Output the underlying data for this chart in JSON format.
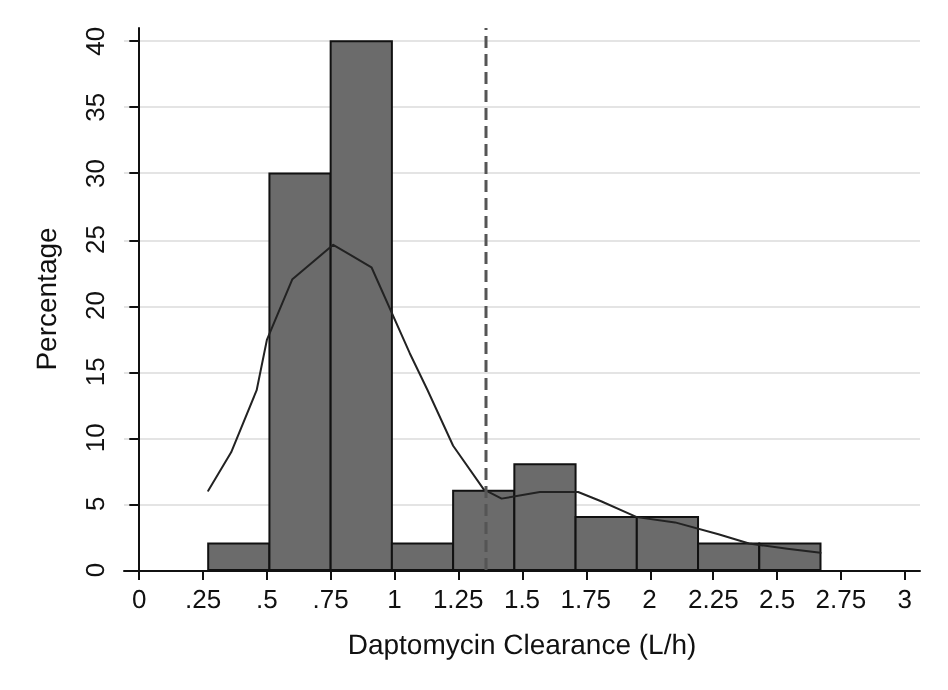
{
  "chart_data": {
    "type": "histogram",
    "xlabel": "Daptomycin Clearance (L/h)",
    "ylabel": "Percentage",
    "color": "#6b6b6b",
    "bins": [
      0.27,
      0.51,
      0.75,
      0.99,
      1.23,
      1.47,
      1.71,
      1.95,
      2.19,
      2.43,
      2.67
    ],
    "values": [
      2,
      30,
      40,
      2,
      6,
      8,
      4,
      4,
      2,
      2
    ],
    "series": [
      {
        "type": "line",
        "color": "#222222",
        "x": [
          0.27,
          0.36,
          0.46,
          0.5,
          0.6,
          0.76,
          0.91,
          1.06,
          1.13,
          1.23,
          1.35,
          1.42,
          1.57,
          1.72,
          1.81,
          1.95,
          2.1,
          2.27,
          2.39,
          2.54,
          2.67
        ],
        "values": [
          6.0,
          8.9,
          13.6,
          17.4,
          22,
          24.6,
          22.9,
          16.4,
          13.6,
          9.4,
          6.1,
          5.4,
          5.9,
          5.9,
          5.2,
          4.0,
          3.6,
          2.7,
          2.0,
          1.6,
          1.3
        ]
      }
    ],
    "ref_lines": [
      {
        "axis": "x",
        "value": 1.36,
        "color": "#555555",
        "line_style": "dashed"
      }
    ],
    "xlim": [
      -0.06,
      3.06
    ],
    "xticks": [
      0,
      {
        "value": 0.25,
        "label": ".25"
      },
      {
        "value": 0.5,
        "label": ".5"
      },
      {
        "value": 0.75,
        "label": ".75"
      },
      1,
      1.25,
      1.5,
      1.75,
      2,
      2.25,
      2.5,
      2.75,
      3
    ],
    "ylim": [
      0,
      41
    ],
    "yticks": [
      0,
      5,
      10,
      15,
      20,
      25,
      30,
      35,
      40
    ],
    "grid": "y",
    "line_style": "solid",
    "marker": "none"
  }
}
